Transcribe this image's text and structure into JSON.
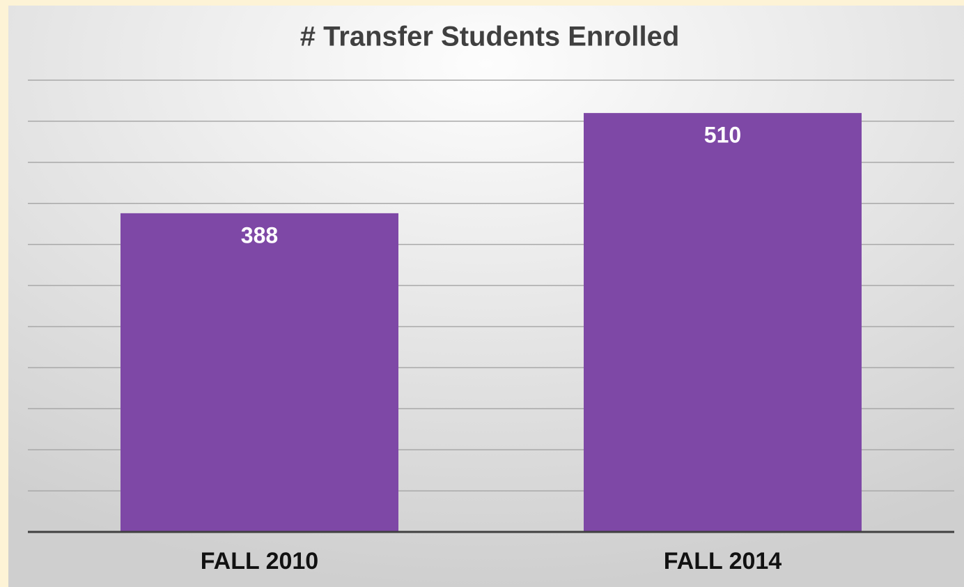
{
  "chart_data": {
    "type": "bar",
    "title": "# Transfer Students Enrolled",
    "categories": [
      "FALL 2010",
      "FALL 2014"
    ],
    "values": [
      388,
      510
    ],
    "color": "#7e48a6",
    "ylim": [
      0,
      550
    ],
    "yticks": [
      0,
      50,
      100,
      150,
      200,
      250,
      300,
      350,
      400,
      450,
      500,
      550
    ],
    "grid": true
  }
}
